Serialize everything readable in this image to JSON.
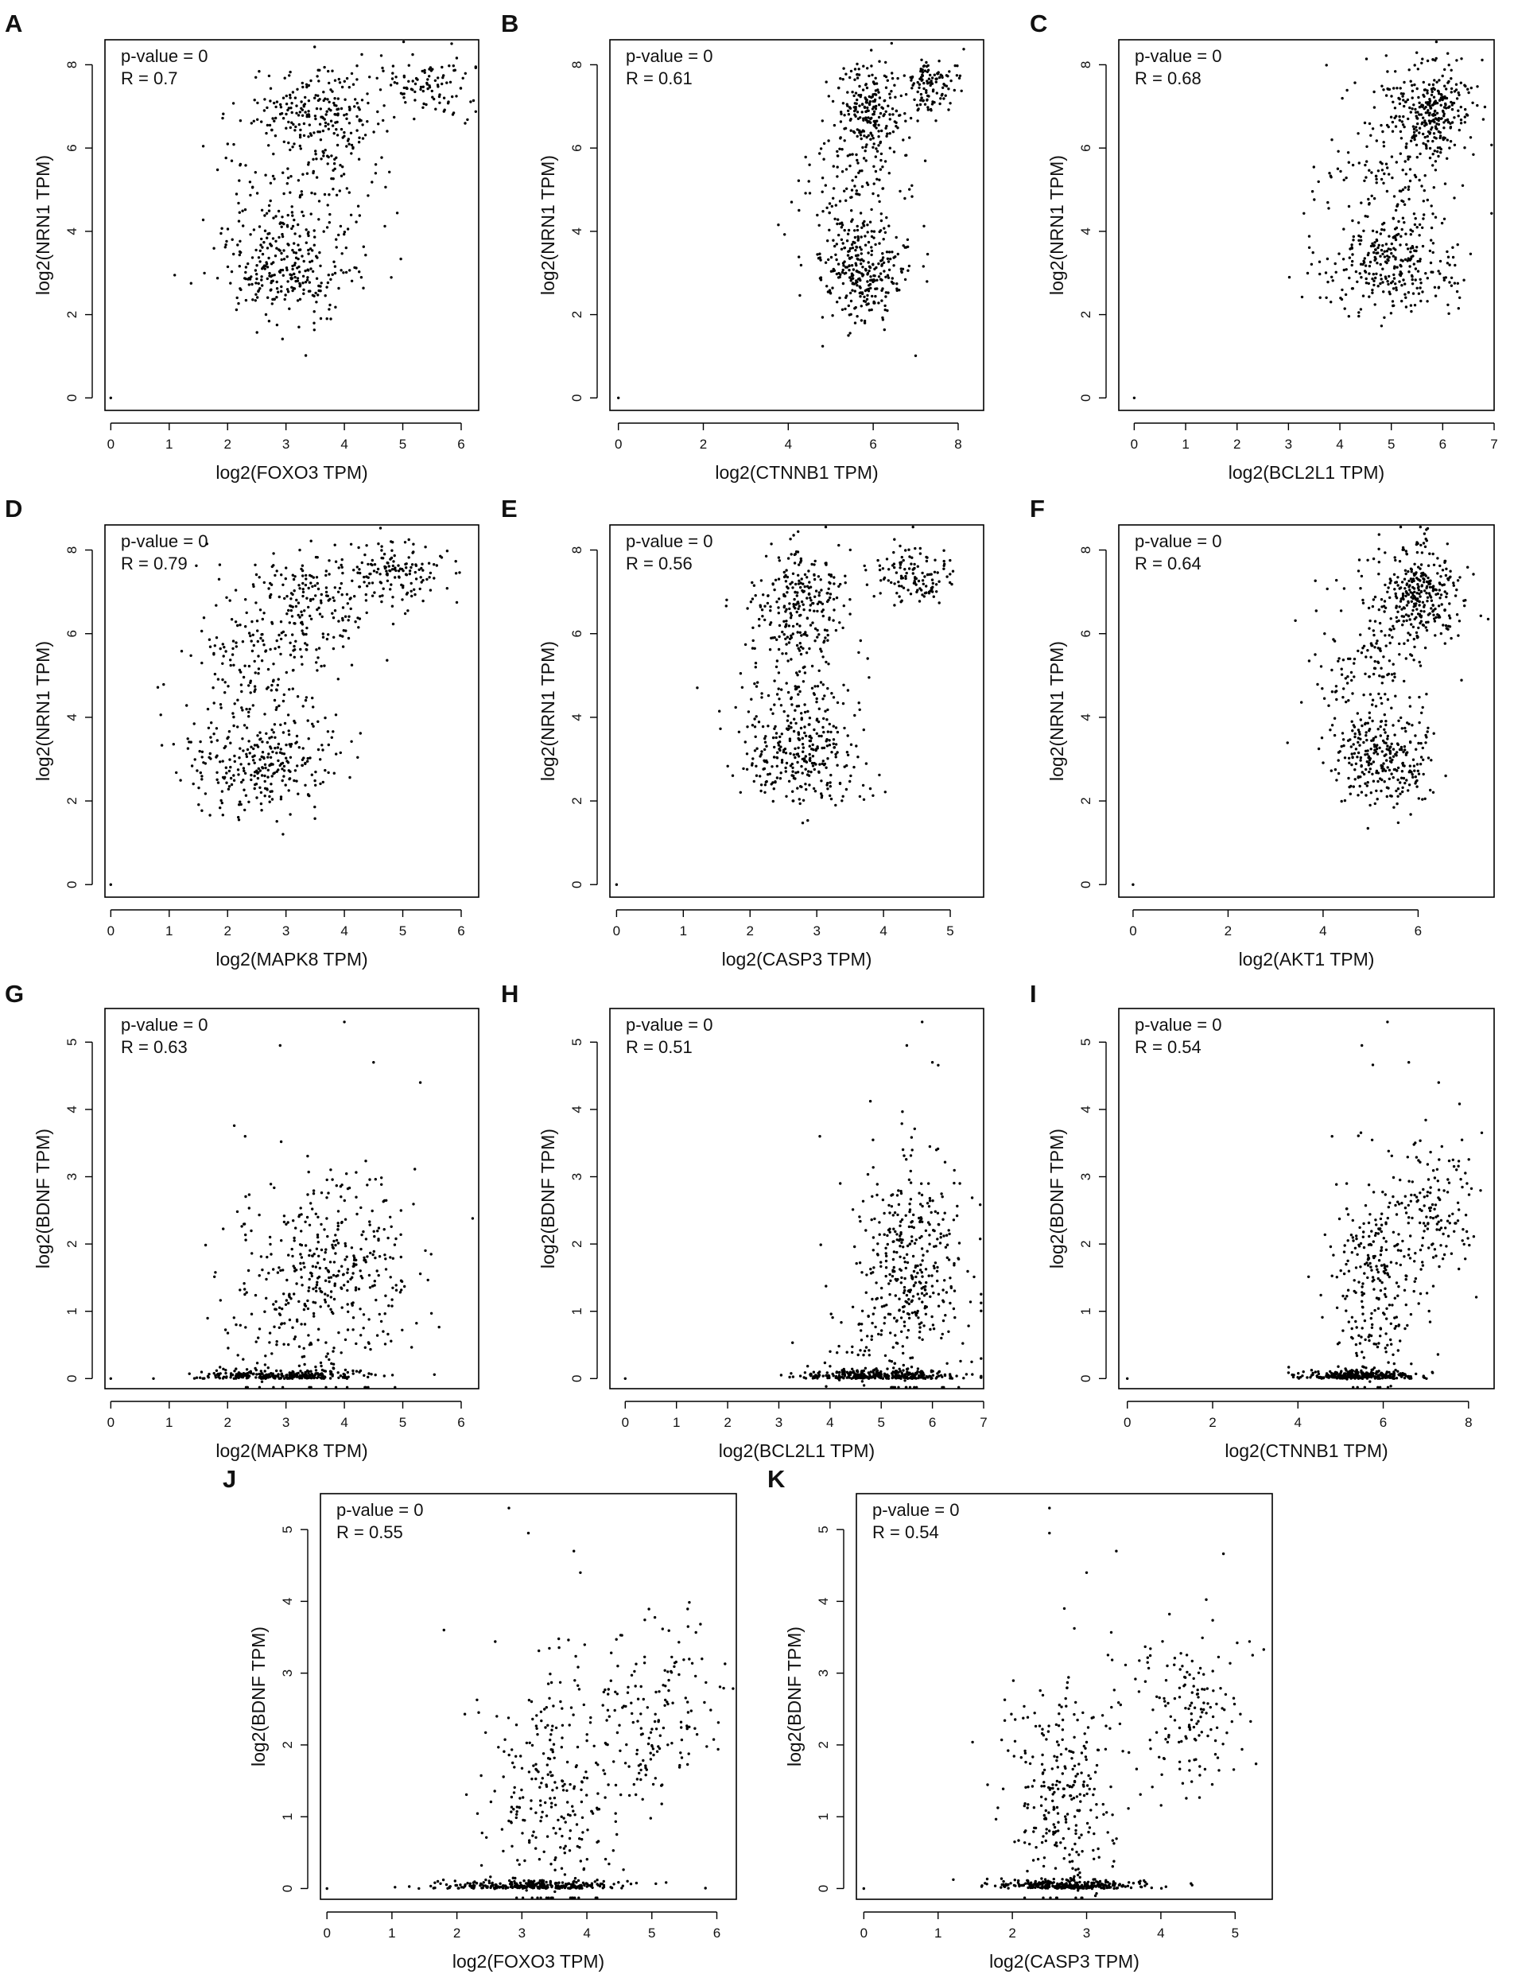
{
  "figure": {
    "panels": [
      {
        "label": "A",
        "stats": [
          "p-value = 0",
          "R = 0.7"
        ]
      },
      {
        "label": "B",
        "stats": [
          "p-value = 0",
          "R = 0.61"
        ]
      },
      {
        "label": "C",
        "stats": [
          "p-value = 0",
          "R = 0.68"
        ]
      },
      {
        "label": "D",
        "stats": [
          "p-value = 0",
          "R = 0.79"
        ]
      },
      {
        "label": "E",
        "stats": [
          "p-value = 0",
          "R = 0.56"
        ]
      },
      {
        "label": "F",
        "stats": [
          "p-value = 0",
          "R = 0.64"
        ]
      },
      {
        "label": "G",
        "stats": [
          "p-value = 0",
          "R = 0.63"
        ]
      },
      {
        "label": "H",
        "stats": [
          "p-value = 0",
          "R = 0.51"
        ]
      },
      {
        "label": "I",
        "stats": [
          "p-value = 0",
          "R = 0.54"
        ]
      },
      {
        "label": "J",
        "stats": [
          "p-value = 0",
          "R = 0.55"
        ]
      },
      {
        "label": "K",
        "stats": [
          "p-value = 0",
          "R = 0.54"
        ]
      }
    ]
  },
  "chart_data": [
    {
      "panel": "A",
      "type": "scatter",
      "xlabel": "log2(FOXO3 TPM)",
      "ylabel": "log2(NRN1 TPM)",
      "p_value": "0",
      "R": 0.7,
      "xlim": [
        -0.1,
        6.3
      ],
      "ylim": [
        -0.3,
        8.6
      ],
      "xticks": [
        0,
        1,
        2,
        3,
        4,
        5,
        6
      ],
      "yticks": [
        0,
        2,
        4,
        6,
        8
      ],
      "clusters": [
        {
          "n": 230,
          "cx": 3.0,
          "cy": 3.0,
          "sx": 0.55,
          "sy": 0.55
        },
        {
          "n": 220,
          "cx": 3.6,
          "cy": 6.8,
          "sx": 0.6,
          "sy": 0.6
        },
        {
          "n": 100,
          "cx": 5.4,
          "cy": 7.5,
          "sx": 0.45,
          "sy": 0.35
        },
        {
          "n": 180,
          "cx": 3.2,
          "cy": 4.6,
          "sx": 0.8,
          "sy": 1.2
        }
      ],
      "points": [
        [
          0,
          0
        ]
      ]
    },
    {
      "panel": "B",
      "type": "scatter",
      "xlabel": "log2(CTNNB1 TPM)",
      "ylabel": "log2(NRN1 TPM)",
      "p_value": "0",
      "R": 0.61,
      "xlim": [
        -0.2,
        8.6
      ],
      "ylim": [
        -0.3,
        8.6
      ],
      "xticks": [
        0,
        2,
        4,
        6,
        8
      ],
      "yticks": [
        0,
        2,
        4,
        6,
        8
      ],
      "clusters": [
        {
          "n": 230,
          "cx": 5.8,
          "cy": 3.0,
          "sx": 0.5,
          "sy": 0.55
        },
        {
          "n": 220,
          "cx": 5.9,
          "cy": 6.9,
          "sx": 0.4,
          "sy": 0.6
        },
        {
          "n": 110,
          "cx": 7.4,
          "cy": 7.5,
          "sx": 0.35,
          "sy": 0.35
        },
        {
          "n": 180,
          "cx": 5.6,
          "cy": 4.6,
          "sx": 0.6,
          "sy": 1.2
        }
      ],
      "points": [
        [
          0,
          0
        ]
      ]
    },
    {
      "panel": "C",
      "type": "scatter",
      "xlabel": "log2(BCL2L1 TPM)",
      "ylabel": "log2(NRN1 TPM)",
      "p_value": "0",
      "R": 0.68,
      "xlim": [
        -0.3,
        7.0
      ],
      "ylim": [
        -0.3,
        8.6
      ],
      "xticks": [
        0,
        1,
        2,
        3,
        4,
        5,
        6,
        7
      ],
      "yticks": [
        0,
        2,
        4,
        6,
        8
      ],
      "clusters": [
        {
          "n": 240,
          "cx": 5.0,
          "cy": 3.1,
          "sx": 0.65,
          "sy": 0.55
        },
        {
          "n": 280,
          "cx": 5.8,
          "cy": 7.0,
          "sx": 0.4,
          "sy": 0.6
        },
        {
          "n": 200,
          "cx": 5.1,
          "cy": 5.0,
          "sx": 0.7,
          "sy": 1.3
        }
      ],
      "points": [
        [
          0,
          0
        ]
      ]
    },
    {
      "panel": "D",
      "type": "scatter",
      "xlabel": "log2(MAPK8 TPM)",
      "ylabel": "log2(NRN1 TPM)",
      "p_value": "0",
      "R": 0.79,
      "xlim": [
        -0.1,
        6.3
      ],
      "ylim": [
        -0.3,
        8.6
      ],
      "xticks": [
        0,
        1,
        2,
        3,
        4,
        5,
        6
      ],
      "yticks": [
        0,
        2,
        4,
        6,
        8
      ],
      "clusters": [
        {
          "n": 240,
          "cx": 2.6,
          "cy": 2.8,
          "sx": 0.6,
          "sy": 0.55
        },
        {
          "n": 230,
          "cx": 3.4,
          "cy": 6.6,
          "sx": 0.7,
          "sy": 0.7
        },
        {
          "n": 130,
          "cx": 4.9,
          "cy": 7.5,
          "sx": 0.4,
          "sy": 0.35
        },
        {
          "n": 160,
          "cx": 2.6,
          "cy": 4.7,
          "sx": 0.7,
          "sy": 1.1
        }
      ],
      "points": [
        [
          0,
          0
        ]
      ]
    },
    {
      "panel": "E",
      "type": "scatter",
      "xlabel": "log2(CASP3 TPM)",
      "ylabel": "log2(NRN1 TPM)",
      "p_value": "0",
      "R": 0.56,
      "xlim": [
        -0.1,
        5.5
      ],
      "ylim": [
        -0.3,
        8.6
      ],
      "xticks": [
        0,
        1,
        2,
        3,
        4,
        5
      ],
      "yticks": [
        0,
        2,
        4,
        6,
        8
      ],
      "clusters": [
        {
          "n": 230,
          "cx": 2.8,
          "cy": 3.0,
          "sx": 0.45,
          "sy": 0.55
        },
        {
          "n": 210,
          "cx": 2.8,
          "cy": 6.9,
          "sx": 0.35,
          "sy": 0.6
        },
        {
          "n": 120,
          "cx": 4.5,
          "cy": 7.4,
          "sx": 0.3,
          "sy": 0.35
        },
        {
          "n": 180,
          "cx": 2.6,
          "cy": 4.7,
          "sx": 0.5,
          "sy": 1.2
        }
      ],
      "points": [
        [
          0,
          0
        ]
      ]
    },
    {
      "panel": "F",
      "type": "scatter",
      "xlabel": "log2(AKT1 TPM)",
      "ylabel": "log2(NRN1 TPM)",
      "p_value": "0",
      "R": 0.64,
      "xlim": [
        -0.3,
        7.6
      ],
      "ylim": [
        -0.3,
        8.6
      ],
      "xticks": [
        0,
        2,
        4,
        6
      ],
      "yticks": [
        0,
        2,
        4,
        6,
        8
      ],
      "clusters": [
        {
          "n": 230,
          "cx": 5.2,
          "cy": 3.0,
          "sx": 0.5,
          "sy": 0.5
        },
        {
          "n": 300,
          "cx": 6.0,
          "cy": 7.0,
          "sx": 0.45,
          "sy": 0.6
        },
        {
          "n": 200,
          "cx": 5.0,
          "cy": 4.8,
          "sx": 0.6,
          "sy": 1.2
        }
      ],
      "points": [
        [
          0,
          0
        ]
      ]
    },
    {
      "panel": "G",
      "type": "scatter",
      "xlabel": "log2(MAPK8 TPM)",
      "ylabel": "log2(BDNF TPM)",
      "p_value": "0",
      "R": 0.63,
      "xlim": [
        -0.1,
        6.3
      ],
      "ylim": [
        -0.15,
        5.5
      ],
      "xticks": [
        0,
        1,
        2,
        3,
        4,
        5,
        6
      ],
      "yticks": [
        0,
        1,
        2,
        3,
        4,
        5
      ],
      "floor": {
        "n": 280,
        "cx": 2.9,
        "sx": 0.75
      },
      "clusters": [
        {
          "n": 380,
          "cx": 3.8,
          "cy": 1.6,
          "sx": 0.8,
          "sy": 0.8
        },
        {
          "n": 60,
          "cx": 2.8,
          "cy": 0.7,
          "sx": 0.6,
          "sy": 0.5
        }
      ],
      "points": [
        [
          0,
          0
        ],
        [
          4.0,
          5.3
        ],
        [
          2.9,
          4.95
        ],
        [
          4.5,
          4.7
        ],
        [
          5.3,
          4.4
        ],
        [
          2.3,
          3.6
        ]
      ]
    },
    {
      "panel": "H",
      "type": "scatter",
      "xlabel": "log2(BCL2L1 TPM)",
      "ylabel": "log2(BDNF TPM)",
      "p_value": "0",
      "R": 0.51,
      "xlim": [
        -0.3,
        7.0
      ],
      "ylim": [
        -0.15,
        5.5
      ],
      "xticks": [
        0,
        1,
        2,
        3,
        4,
        5,
        6,
        7
      ],
      "yticks": [
        0,
        1,
        2,
        3,
        4,
        5
      ],
      "floor": {
        "n": 300,
        "cx": 5.0,
        "sx": 0.75
      },
      "clusters": [
        {
          "n": 380,
          "cx": 5.6,
          "cy": 1.7,
          "sx": 0.55,
          "sy": 0.85
        },
        {
          "n": 60,
          "cx": 4.8,
          "cy": 0.6,
          "sx": 0.6,
          "sy": 0.5
        }
      ],
      "points": [
        [
          0,
          0
        ],
        [
          5.8,
          5.3
        ],
        [
          5.5,
          4.95
        ],
        [
          6.0,
          4.7
        ],
        [
          3.8,
          3.6
        ],
        [
          4.2,
          2.9
        ]
      ]
    },
    {
      "panel": "I",
      "type": "scatter",
      "xlabel": "log2(CTNNB1 TPM)",
      "ylabel": "log2(BDNF TPM)",
      "p_value": "0",
      "R": 0.54,
      "xlim": [
        -0.2,
        8.6
      ],
      "ylim": [
        -0.15,
        5.5
      ],
      "xticks": [
        0,
        2,
        4,
        6,
        8
      ],
      "yticks": [
        0,
        1,
        2,
        3,
        4,
        5
      ],
      "floor": {
        "n": 300,
        "cx": 5.5,
        "sx": 0.7
      },
      "clusters": [
        {
          "n": 260,
          "cx": 5.8,
          "cy": 1.4,
          "sx": 0.45,
          "sy": 0.8
        },
        {
          "n": 150,
          "cx": 7.2,
          "cy": 2.4,
          "sx": 0.5,
          "sy": 0.6
        }
      ],
      "points": [
        [
          0,
          0
        ],
        [
          6.1,
          5.3
        ],
        [
          5.5,
          4.95
        ],
        [
          6.6,
          4.7
        ],
        [
          7.3,
          4.4
        ],
        [
          4.8,
          3.6
        ]
      ]
    },
    {
      "panel": "J",
      "type": "scatter",
      "xlabel": "log2(FOXO3 TPM)",
      "ylabel": "log2(BDNF TPM)",
      "p_value": "0",
      "R": 0.55,
      "xlim": [
        -0.1,
        6.3
      ],
      "ylim": [
        -0.15,
        5.5
      ],
      "xticks": [
        0,
        1,
        2,
        3,
        4,
        5,
        6
      ],
      "yticks": [
        0,
        1,
        2,
        3,
        4,
        5
      ],
      "floor": {
        "n": 300,
        "cx": 3.2,
        "sx": 0.7
      },
      "clusters": [
        {
          "n": 260,
          "cx": 3.4,
          "cy": 1.3,
          "sx": 0.55,
          "sy": 0.8
        },
        {
          "n": 170,
          "cx": 5.0,
          "cy": 2.4,
          "sx": 0.55,
          "sy": 0.6
        }
      ],
      "points": [
        [
          0,
          0
        ],
        [
          2.8,
          5.3
        ],
        [
          3.1,
          4.95
        ],
        [
          3.8,
          4.7
        ],
        [
          3.9,
          4.4
        ],
        [
          1.8,
          3.6
        ]
      ]
    },
    {
      "panel": "K",
      "type": "scatter",
      "xlabel": "log2(CASP3 TPM)",
      "ylabel": "log2(BDNF TPM)",
      "p_value": "0",
      "R": 0.54,
      "xlim": [
        -0.1,
        5.5
      ],
      "ylim": [
        -0.15,
        5.5
      ],
      "xticks": [
        0,
        1,
        2,
        3,
        4,
        5
      ],
      "yticks": [
        0,
        1,
        2,
        3,
        4,
        5
      ],
      "floor": {
        "n": 300,
        "cx": 2.7,
        "sx": 0.5
      },
      "clusters": [
        {
          "n": 280,
          "cx": 2.7,
          "cy": 1.3,
          "sx": 0.35,
          "sy": 0.8
        },
        {
          "n": 150,
          "cx": 4.4,
          "cy": 2.5,
          "sx": 0.4,
          "sy": 0.55
        }
      ],
      "points": [
        [
          0,
          0
        ],
        [
          2.5,
          5.3
        ],
        [
          2.5,
          4.95
        ],
        [
          3.4,
          4.7
        ],
        [
          3.0,
          4.4
        ],
        [
          2.7,
          3.9
        ]
      ]
    }
  ]
}
